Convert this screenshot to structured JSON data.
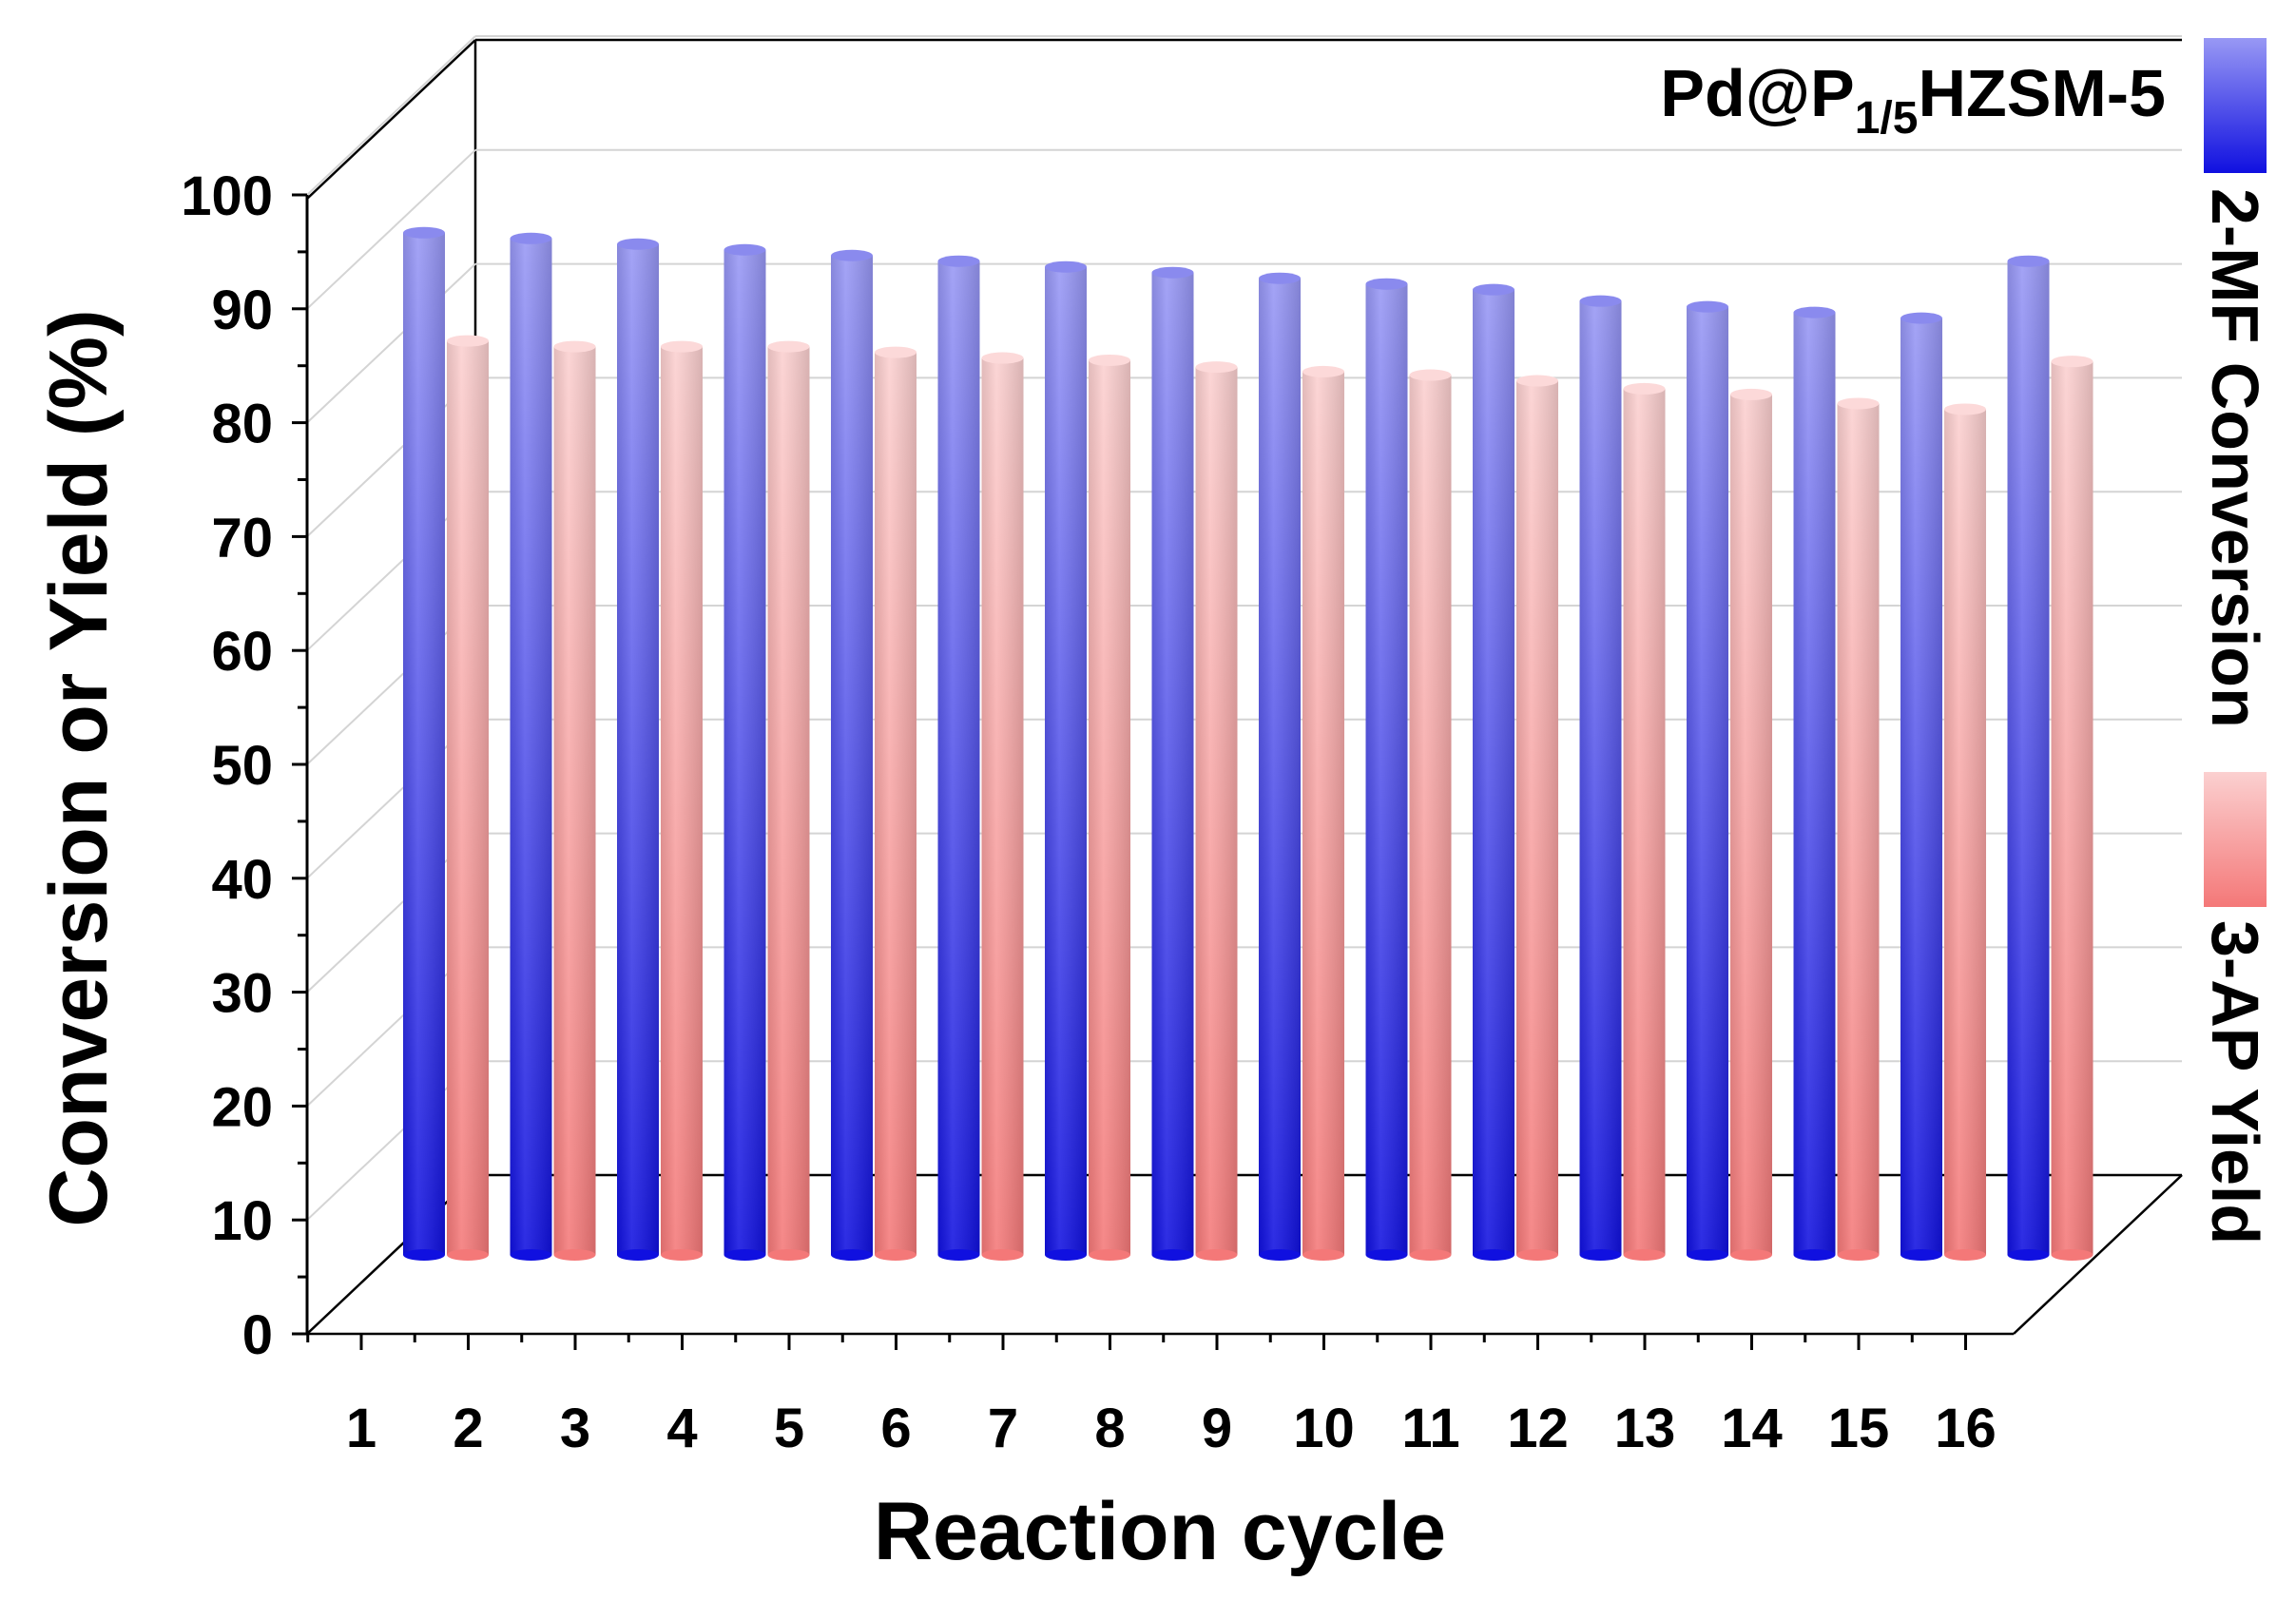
{
  "chart_data": {
    "type": "bar",
    "style": "3d-cylinder",
    "catalyst_label": {
      "main": "Pd@P",
      "subscript": "1/5",
      "suffix": "HZSM-5"
    },
    "xlabel": "Reaction cycle",
    "ylabel": "Conversion or Yield (%)",
    "ylim": [
      0,
      100
    ],
    "yticks": [
      "0",
      "10",
      "20",
      "30",
      "40",
      "50",
      "60",
      "70",
      "80",
      "90",
      "100"
    ],
    "categories": [
      "1",
      "2",
      "3",
      "4",
      "5",
      "6",
      "7",
      "8",
      "9",
      "10",
      "11",
      "12",
      "13",
      "14",
      "15",
      "16"
    ],
    "series": [
      {
        "name": "2-MF Conversion",
        "values": [
          89,
          88.5,
          88,
          87.5,
          87,
          86.5,
          86,
          85.5,
          85,
          84.5,
          84,
          83,
          82.5,
          82,
          81.5,
          86.5
        ]
      },
      {
        "name": "3-AP Yield",
        "values": [
          79.5,
          79,
          79,
          79,
          78.5,
          78,
          77.8,
          77.2,
          76.8,
          76.5,
          76,
          75.3,
          74.8,
          74,
          73.5,
          77.7
        ]
      }
    ],
    "colors": {
      "conversion_top": "#9898f4",
      "conversion_bottom": "#1010e0",
      "yield_top": "#fbd0d0",
      "yield_bottom": "#f47878"
    },
    "grid": true
  }
}
